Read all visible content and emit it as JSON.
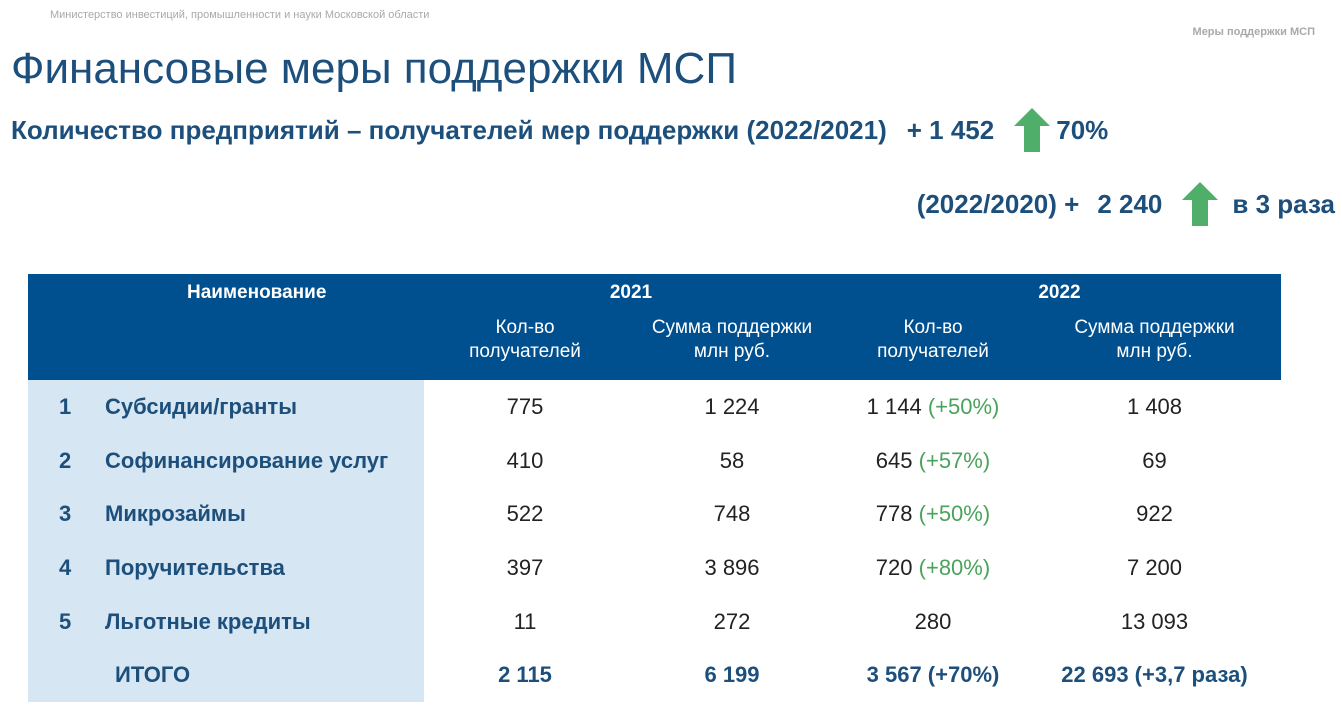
{
  "header": {
    "ministry": "Министерство инвестиций, промышленности и науки Московской области",
    "section_tag": "Меры поддержки МСП",
    "title": "Финансовые меры поддержки МСП"
  },
  "stats": {
    "line1": {
      "label": "Количество предприятий – получателей мер поддержки (2022/2021)",
      "delta": "+ 1 452",
      "relative": "70%"
    },
    "line2": {
      "label": "(2022/2020) +",
      "delta": "2 240",
      "relative": "в 3 раза"
    },
    "arrow_color": "#4fae6a"
  },
  "table": {
    "header": {
      "name": "Наименование",
      "year1": "2021",
      "year2": "2022",
      "count_label_line1": "Кол-во",
      "count_label_line2": "получателей",
      "sum_label_line1": "Сумма поддержки",
      "sum_label_line2": "млн руб."
    },
    "rows": [
      {
        "num": "1",
        "name": "Субсидии/гранты",
        "c2021": "775",
        "s2021": "1 224",
        "c2022": "1 144",
        "c2022_pct": "(+50%)",
        "s2022": "1 408"
      },
      {
        "num": "2",
        "name": "Софинансирование услуг",
        "c2021": "410",
        "s2021": "58",
        "c2022": "645",
        "c2022_pct": "(+57%)",
        "s2022": "69"
      },
      {
        "num": "3",
        "name": "Микрозаймы",
        "c2021": "522",
        "s2021": "748",
        "c2022": "778",
        "c2022_pct": "(+50%)",
        "s2022": "922"
      },
      {
        "num": "4",
        "name": "Поручительства",
        "c2021": "397",
        "s2021": "3 896",
        "c2022": "720",
        "c2022_pct": "(+80%)",
        "s2022": "7 200"
      },
      {
        "num": "5",
        "name": "Льготные кредиты",
        "c2021": "11",
        "s2021": "272",
        "c2022": "280",
        "c2022_pct": "",
        "s2022": "13 093"
      }
    ],
    "total": {
      "name": "ИТОГО",
      "c2021": "2 115",
      "s2021": "6 199",
      "c2022": "3 567 (+70%)",
      "s2022": "22 693 (+3,7 раза)"
    }
  },
  "colors": {
    "header_blue": "#004f8f",
    "title_blue": "#1d4f7c",
    "name_column_bg": "#d6e6f2",
    "growth_green": "#4aa35a"
  }
}
